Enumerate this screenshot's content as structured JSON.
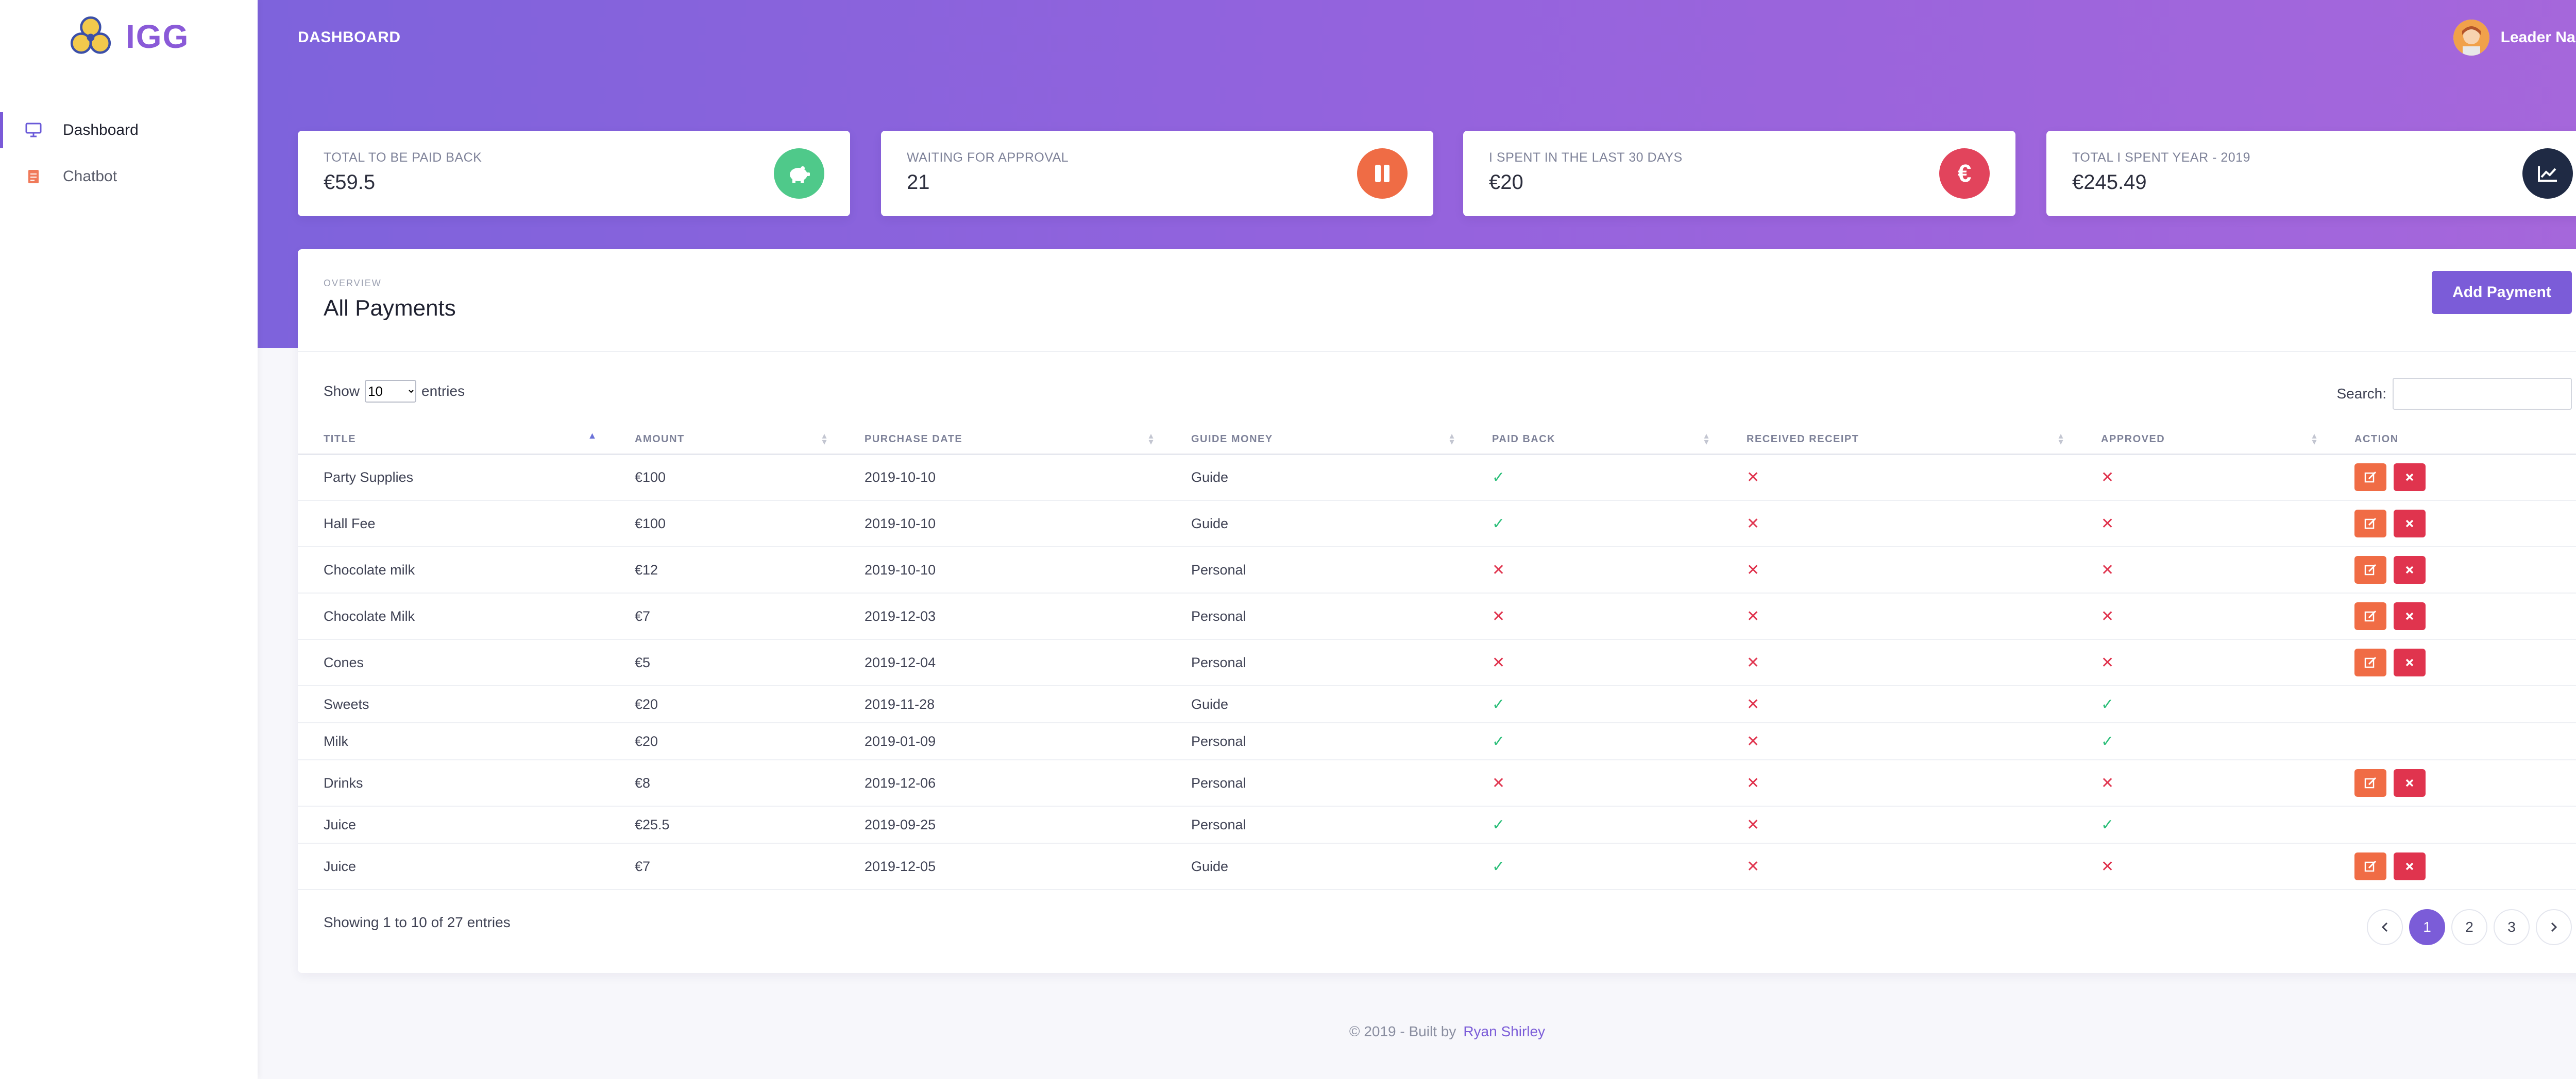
{
  "app": {
    "name": "IGG"
  },
  "sidebar": {
    "items": [
      {
        "label": "Dashboard",
        "icon": "monitor-icon",
        "active": true
      },
      {
        "label": "Chatbot",
        "icon": "document-icon",
        "active": false
      }
    ]
  },
  "header": {
    "title": "DASHBOARD",
    "user_name": "Leader Name"
  },
  "stats": [
    {
      "label": "TOTAL TO BE PAID BACK",
      "value": "€59.5",
      "icon": "piggy-bank-icon",
      "color": "#4fc98a"
    },
    {
      "label": "WAITING FOR APPROVAL",
      "value": "21",
      "icon": "pause-icon",
      "color": "#ef6c45"
    },
    {
      "label": "I SPENT IN THE LAST 30 DAYS",
      "value": "€20",
      "icon": "euro-icon",
      "color": "#e2445c"
    },
    {
      "label": "TOTAL I SPENT YEAR - 2019",
      "value": "€245.49",
      "icon": "chart-line-icon",
      "color": "#1f2a44"
    }
  ],
  "panel": {
    "overline": "OVERVIEW",
    "title": "All Payments",
    "add_button": "Add Payment",
    "show_label": "Show",
    "entries_label": "entries",
    "page_size": "10",
    "search_label": "Search:",
    "search_value": ""
  },
  "table": {
    "columns": [
      "TITLE",
      "AMOUNT",
      "PURCHASE DATE",
      "GUIDE MONEY",
      "PAID BACK",
      "RECEIVED RECEIPT",
      "APPROVED",
      "ACTION"
    ],
    "rows": [
      {
        "title": "Party Supplies",
        "amount": "€100",
        "date": "2019-10-10",
        "guide_money": "Guide",
        "paid_back": true,
        "receipt": false,
        "approved": false,
        "actions": true
      },
      {
        "title": "Hall Fee",
        "amount": "€100",
        "date": "2019-10-10",
        "guide_money": "Guide",
        "paid_back": true,
        "receipt": false,
        "approved": false,
        "actions": true
      },
      {
        "title": "Chocolate milk",
        "amount": "€12",
        "date": "2019-10-10",
        "guide_money": "Personal",
        "paid_back": false,
        "receipt": false,
        "approved": false,
        "actions": true
      },
      {
        "title": "Chocolate Milk",
        "amount": "€7",
        "date": "2019-12-03",
        "guide_money": "Personal",
        "paid_back": false,
        "receipt": false,
        "approved": false,
        "actions": true
      },
      {
        "title": "Cones",
        "amount": "€5",
        "date": "2019-12-04",
        "guide_money": "Personal",
        "paid_back": false,
        "receipt": false,
        "approved": false,
        "actions": true
      },
      {
        "title": "Sweets",
        "amount": "€20",
        "date": "2019-11-28",
        "guide_money": "Guide",
        "paid_back": true,
        "receipt": false,
        "approved": true,
        "actions": false
      },
      {
        "title": "Milk",
        "amount": "€20",
        "date": "2019-01-09",
        "guide_money": "Personal",
        "paid_back": true,
        "receipt": false,
        "approved": true,
        "actions": false
      },
      {
        "title": "Drinks",
        "amount": "€8",
        "date": "2019-12-06",
        "guide_money": "Personal",
        "paid_back": false,
        "receipt": false,
        "approved": false,
        "actions": true
      },
      {
        "title": "Juice",
        "amount": "€25.5",
        "date": "2019-09-25",
        "guide_money": "Personal",
        "paid_back": true,
        "receipt": false,
        "approved": true,
        "actions": false
      },
      {
        "title": "Juice",
        "amount": "€7",
        "date": "2019-12-05",
        "guide_money": "Guide",
        "paid_back": true,
        "receipt": false,
        "approved": false,
        "actions": true
      }
    ]
  },
  "pagination": {
    "info": "Showing 1 to 10 of 27 entries",
    "pages": [
      "1",
      "2",
      "3"
    ],
    "current": "1"
  },
  "footer": {
    "text": "© 2019 - Built by",
    "author": "Ryan Shirley"
  },
  "colors": {
    "accent": "#7b5cd8",
    "success": "#2dbf7a",
    "danger": "#e0344e",
    "edit": "#f06c45"
  }
}
